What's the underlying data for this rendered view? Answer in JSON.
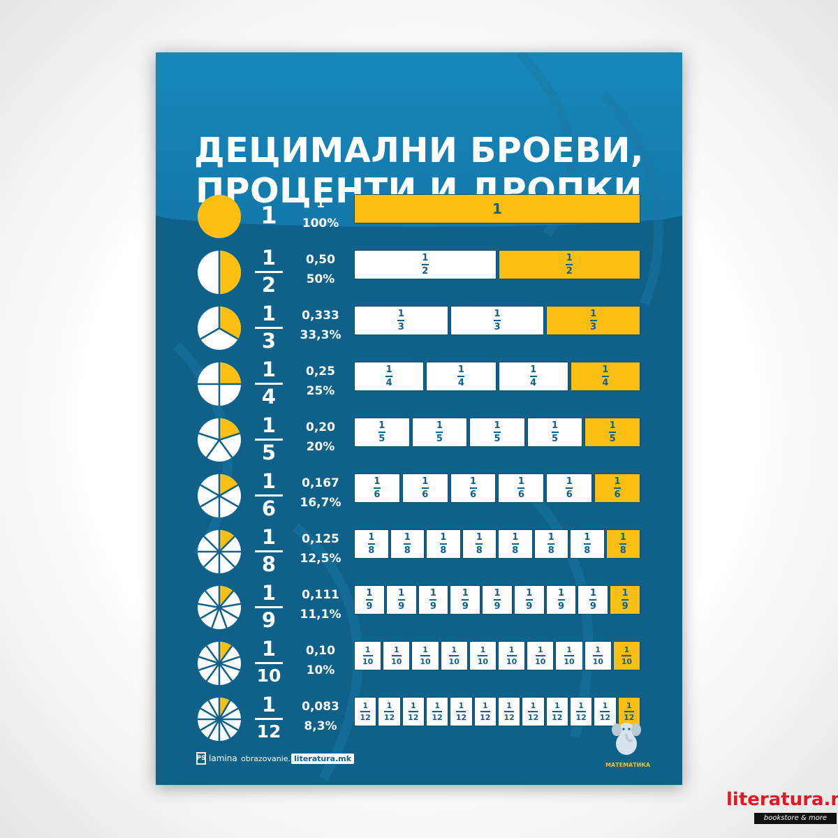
{
  "poster": {
    "title_line1": "ДЕЦИМАЛНИ БРОЕВИ,",
    "title_line2": "ПРОЦЕНТИ И ДРОПКИ",
    "colors": {
      "background": "#0f6189",
      "header": "#1788ba",
      "accent": "#fbbf14",
      "text": "#ffffff",
      "fraction_text": "#0f6189"
    },
    "rows": [
      {
        "denominator": 1,
        "numerator": "1",
        "fraction_label": "1",
        "decimal": "1",
        "percent": "100%",
        "strip_label": "1"
      },
      {
        "denominator": 2,
        "numerator": "1",
        "fraction_label": "2",
        "decimal": "0,50",
        "percent": "50%",
        "strip_label": "2"
      },
      {
        "denominator": 3,
        "numerator": "1",
        "fraction_label": "3",
        "decimal": "0,333",
        "percent": "33,3%",
        "strip_label": "3"
      },
      {
        "denominator": 4,
        "numerator": "1",
        "fraction_label": "4",
        "decimal": "0,25",
        "percent": "25%",
        "strip_label": "4"
      },
      {
        "denominator": 5,
        "numerator": "1",
        "fraction_label": "5",
        "decimal": "0,20",
        "percent": "20%",
        "strip_label": "5"
      },
      {
        "denominator": 6,
        "numerator": "1",
        "fraction_label": "6",
        "decimal": "0,167",
        "percent": "16,7%",
        "strip_label": "6"
      },
      {
        "denominator": 8,
        "numerator": "1",
        "fraction_label": "8",
        "decimal": "0,125",
        "percent": "12,5%",
        "strip_label": "8"
      },
      {
        "denominator": 9,
        "numerator": "1",
        "fraction_label": "9",
        "decimal": "0,111",
        "percent": "11,1%",
        "strip_label": "9"
      },
      {
        "denominator": 10,
        "numerator": "1",
        "fraction_label": "10",
        "decimal": "0,10",
        "percent": "10%",
        "strip_label": "10"
      },
      {
        "denominator": 12,
        "numerator": "1",
        "fraction_label": "12",
        "decimal": "0,083",
        "percent": "8,3%",
        "strip_label": "12"
      }
    ],
    "footer": {
      "publisher_mark": "PS",
      "publisher": "lamina",
      "site_prefix": "obrazovanie.",
      "site_highlight": "literatura.mk",
      "mascot_label": "МАТЕМАТИКА"
    }
  },
  "watermark": {
    "store_name": "literatura.mk",
    "store_tagline": "bookstore & more"
  }
}
